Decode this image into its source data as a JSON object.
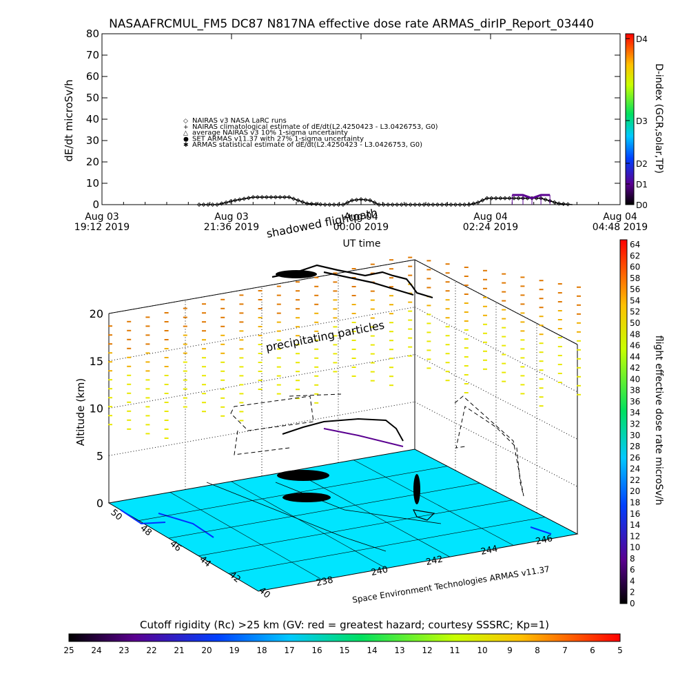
{
  "chart_data": [
    {
      "type": "line",
      "title": "NASAAFRCMUL_FM5 DC87 N817NA effective dose rate ARMAS_dirIP_Report_03440",
      "ylabel": "dE/dt microSv/h",
      "xlabel": "UT time",
      "ylim": [
        0,
        80
      ],
      "yticks": [
        "0",
        "10",
        "20",
        "30",
        "40",
        "50",
        "60",
        "70",
        "80"
      ],
      "xticks": [
        {
          "line1": "Aug 03",
          "line2": "19:12 2019"
        },
        {
          "line1": "Aug 03",
          "line2": "21:36 2019"
        },
        {
          "line1": "Aug 04",
          "line2": "00:00 2019"
        },
        {
          "line1": "Aug 04",
          "line2": "02:24 2019"
        },
        {
          "line1": "Aug 04",
          "line2": "04:48 2019"
        }
      ],
      "legend": [
        {
          "marker": "◇",
          "label": "NAIRAS v3 NASA LaRC runs"
        },
        {
          "marker": "+",
          "label": "NAIRAS climatological estimate of dE/dt(L2.4250423 - L3.0426753, G0)"
        },
        {
          "marker": "△",
          "label": "average NAIRAS v3 10% 1-sigma uncertainty"
        },
        {
          "marker": "●",
          "label": "SET ARMAS v11.37 with 27% 1-sigma uncertainty"
        },
        {
          "marker": "✱",
          "label": "ARMAS statistical estimate of dE/dt(L2.4250423 - L3.0426753, G0)"
        }
      ],
      "right_axis": {
        "label": "D-index (GCR,solar,TP)",
        "ticks": [
          "D0",
          "D1",
          "D2",
          "D3",
          "D4"
        ]
      },
      "series": [
        {
          "name": "NAIRAS v3 NASA LaRC runs",
          "x": [
            "21:00",
            "21:20",
            "21:40",
            "22:00",
            "22:20",
            "22:40",
            "23:00",
            "23:20",
            "23:40",
            "23:50",
            "00:00",
            "00:10",
            "00:20",
            "00:40",
            "01:00",
            "01:20",
            "01:40",
            "02:00",
            "02:10",
            "02:20",
            "02:40",
            "03:00",
            "03:20",
            "03:40",
            "03:55"
          ],
          "values": [
            0,
            0,
            2,
            3.5,
            3.5,
            3.5,
            0.5,
            0,
            0,
            2,
            2.5,
            2,
            0,
            0,
            0,
            0,
            0,
            0,
            1,
            3,
            3,
            3,
            3,
            0.5,
            0
          ]
        },
        {
          "name": "SET ARMAS v11.37 with 27% 1-sigma uncertainty",
          "x": [
            "02:48",
            "03:00",
            "03:10",
            "03:20",
            "03:30"
          ],
          "values": [
            4.5,
            4.5,
            3,
            4.5,
            4.5
          ]
        }
      ]
    },
    {
      "type": "scatter",
      "zlabel": "Altitude (km)",
      "zticks": [
        "0",
        "5",
        "10",
        "15",
        "20"
      ],
      "lat_ticks": [
        "50",
        "48",
        "46",
        "44",
        "42",
        "40"
      ],
      "lon_ticks": [
        "238",
        "240",
        "242",
        "244",
        "246"
      ],
      "annotations": [
        "precipitating particles",
        "shadowed flightpath"
      ],
      "credit": "Space Environment Technologies ARMAS v11.37",
      "right_colorbar": {
        "label": "flight effective dose rate microSv/h",
        "ticks": [
          "0",
          "2",
          "4",
          "6",
          "8",
          "10",
          "12",
          "14",
          "16",
          "18",
          "20",
          "22",
          "24",
          "26",
          "28",
          "30",
          "32",
          "34",
          "36",
          "38",
          "40",
          "42",
          "44",
          "46",
          "48",
          "50",
          "52",
          "54",
          "56",
          "58",
          "60",
          "62",
          "64"
        ]
      },
      "bottom_colorbar": {
        "label": "Cutoff rigidity (Rc) >25 km (GV: red = greatest hazard; courtesy SSSRC; Kp=1)",
        "ticks": [
          "25",
          "24",
          "23",
          "22",
          "21",
          "20",
          "19",
          "18",
          "17",
          "16",
          "15",
          "14",
          "13",
          "12",
          "11",
          "10",
          "9",
          "8",
          "7",
          "6",
          "5"
        ]
      }
    }
  ]
}
